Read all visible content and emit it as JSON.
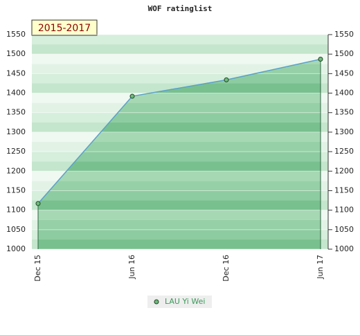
{
  "chart_data": {
    "type": "area",
    "title": "WOF ratinglist",
    "annotation": "2015-2017",
    "categories": [
      "Dec 15",
      "Jun 16",
      "Dec 16",
      "Jun 17"
    ],
    "series": [
      {
        "name": "LAU Yi Wei",
        "color": "#5aa0c8",
        "marker_color": "#6dbb7d",
        "values": [
          1117,
          1392,
          1434,
          1487
        ]
      }
    ],
    "ylim": [
      1000,
      1550
    ],
    "yticks": [
      1000,
      1050,
      1100,
      1150,
      1200,
      1250,
      1300,
      1350,
      1400,
      1450,
      1500,
      1550
    ],
    "grid": true,
    "legend": "bottom"
  }
}
